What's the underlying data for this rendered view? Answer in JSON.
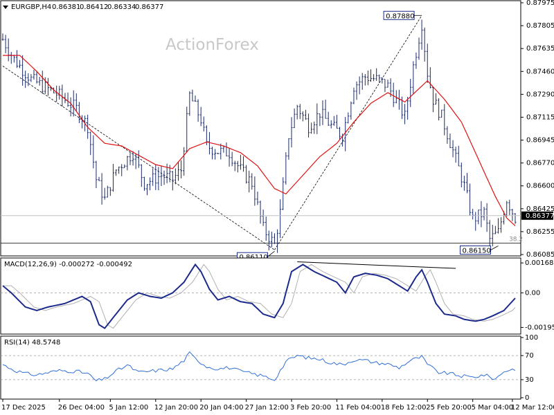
{
  "header": {
    "symbol": "EURGBP,H4",
    "open": "0.86381",
    "high": "0.86412",
    "low": "0.86334",
    "close": "0.86377"
  },
  "watermark": "ActionForex",
  "colors": {
    "price_bars": "#1b2a66",
    "moving_average": "#e01010",
    "macd_line": "#1b2a8a",
    "macd_signal": "#b0b0b0",
    "rsi_line": "#2f6fd6",
    "trendline": "#000000",
    "frame": "#000000"
  },
  "chart_data": [
    {
      "name": "price",
      "type": "ohlc",
      "ylim": [
        0.86085,
        0.87975
      ],
      "y_ticks": [
        "0.87975",
        "0.87805",
        "0.87635",
        "0.87460",
        "0.87290",
        "0.87115",
        "0.86945",
        "0.86770",
        "0.86600",
        "0.86425",
        "0.86255",
        "0.86085"
      ],
      "current_price_label": "0.86377",
      "fib_label": "38.2",
      "fib_level": 0.8617,
      "annotations": [
        {
          "label": "0.87880",
          "value": 0.8788,
          "index": 148
        },
        {
          "label": "0.86110",
          "value": 0.8611,
          "index": 96
        },
        {
          "label": "0.86150",
          "value": 0.8615,
          "index": 175
        }
      ],
      "anchor_points": [
        [
          0,
          0.877
        ],
        [
          4,
          0.8755
        ],
        [
          10,
          0.874
        ],
        [
          20,
          0.8728
        ],
        [
          26,
          0.8718
        ],
        [
          30,
          0.8705
        ],
        [
          33,
          0.8665
        ],
        [
          36,
          0.865
        ],
        [
          40,
          0.8672
        ],
        [
          46,
          0.8685
        ],
        [
          50,
          0.8662
        ],
        [
          56,
          0.8668
        ],
        [
          60,
          0.8665
        ],
        [
          63,
          0.8672
        ],
        [
          66,
          0.8728
        ],
        [
          70,
          0.871
        ],
        [
          72,
          0.869
        ],
        [
          76,
          0.8686
        ],
        [
          80,
          0.8685
        ],
        [
          84,
          0.8672
        ],
        [
          88,
          0.8662
        ],
        [
          92,
          0.8628
        ],
        [
          96,
          0.8616
        ],
        [
          98,
          0.864
        ],
        [
          101,
          0.8698
        ],
        [
          104,
          0.872
        ],
        [
          108,
          0.8705
        ],
        [
          112,
          0.8715
        ],
        [
          116,
          0.8705
        ],
        [
          120,
          0.8698
        ],
        [
          124,
          0.8735
        ],
        [
          128,
          0.8742
        ],
        [
          132,
          0.874
        ],
        [
          136,
          0.8735
        ],
        [
          140,
          0.872
        ],
        [
          142,
          0.8712
        ],
        [
          145,
          0.875
        ],
        [
          148,
          0.8782
        ],
        [
          150,
          0.8745
        ],
        [
          152,
          0.8725
        ],
        [
          155,
          0.8712
        ],
        [
          160,
          0.868
        ],
        [
          163,
          0.866
        ],
        [
          166,
          0.8635
        ],
        [
          170,
          0.864
        ],
        [
          172,
          0.862
        ],
        [
          175,
          0.8625
        ],
        [
          178,
          0.865
        ],
        [
          181,
          0.8636
        ]
      ],
      "ma_points": [
        [
          0,
          0.8758
        ],
        [
          6,
          0.8758
        ],
        [
          12,
          0.8746
        ],
        [
          18,
          0.8732
        ],
        [
          24,
          0.8722
        ],
        [
          30,
          0.8704
        ],
        [
          36,
          0.8692
        ],
        [
          42,
          0.869
        ],
        [
          48,
          0.8683
        ],
        [
          54,
          0.8676
        ],
        [
          60,
          0.8673
        ],
        [
          66,
          0.8688
        ],
        [
          72,
          0.8693
        ],
        [
          78,
          0.869
        ],
        [
          84,
          0.8685
        ],
        [
          90,
          0.8675
        ],
        [
          96,
          0.8658
        ],
        [
          100,
          0.8654
        ],
        [
          106,
          0.8668
        ],
        [
          112,
          0.8682
        ],
        [
          118,
          0.8692
        ],
        [
          124,
          0.8708
        ],
        [
          130,
          0.8722
        ],
        [
          136,
          0.873
        ],
        [
          142,
          0.8723
        ],
        [
          148,
          0.8735
        ],
        [
          150,
          0.8739
        ],
        [
          156,
          0.8725
        ],
        [
          162,
          0.8708
        ],
        [
          168,
          0.868
        ],
        [
          174,
          0.8652
        ],
        [
          178,
          0.8636
        ],
        [
          181,
          0.863
        ]
      ],
      "trendlines": [
        {
          "from": [
            0,
            0.875
          ],
          "to": [
            96,
            0.8612
          ]
        },
        {
          "from": [
            96,
            0.8612
          ],
          "to": [
            148,
            0.8788
          ]
        }
      ]
    },
    {
      "name": "macd",
      "type": "line",
      "label": "MACD(12,26,9) -0.000272 -0.000492",
      "ylim": [
        -0.00225,
        0.00185
      ],
      "y_ticks": [
        "0.001688",
        "0.00",
        "-0.001953"
      ],
      "y_tick_values": [
        0.001688,
        0.0,
        -0.001953
      ],
      "macd_points": [
        [
          0,
          0.0004
        ],
        [
          3,
          0.0
        ],
        [
          8,
          -0.0008
        ],
        [
          12,
          -0.001
        ],
        [
          16,
          -0.0008
        ],
        [
          22,
          -0.0006
        ],
        [
          28,
          -0.0002
        ],
        [
          31,
          -0.0005
        ],
        [
          34,
          -0.0018
        ],
        [
          36,
          -0.002
        ],
        [
          40,
          -0.0012
        ],
        [
          44,
          -0.0004
        ],
        [
          48,
          0.0
        ],
        [
          52,
          -0.0002
        ],
        [
          56,
          -0.0003
        ],
        [
          60,
          0.0
        ],
        [
          64,
          0.0006
        ],
        [
          68,
          0.0016
        ],
        [
          70,
          0.0012
        ],
        [
          73,
          0.0002
        ],
        [
          76,
          -0.0004
        ],
        [
          80,
          -0.0002
        ],
        [
          84,
          -0.0005
        ],
        [
          88,
          -0.0006
        ],
        [
          92,
          -0.0012
        ],
        [
          96,
          -0.0014
        ],
        [
          99,
          -0.0006
        ],
        [
          102,
          0.0012
        ],
        [
          106,
          0.0016
        ],
        [
          110,
          0.0012
        ],
        [
          114,
          0.0009
        ],
        [
          118,
          0.0006
        ],
        [
          121,
          0.0
        ],
        [
          124,
          0.0009
        ],
        [
          128,
          0.0011
        ],
        [
          132,
          0.001
        ],
        [
          136,
          0.0008
        ],
        [
          140,
          0.0004
        ],
        [
          143,
          0.0001
        ],
        [
          146,
          0.0009
        ],
        [
          148,
          0.0013
        ],
        [
          150,
          0.0006
        ],
        [
          153,
          -0.0006
        ],
        [
          156,
          -0.0012
        ],
        [
          160,
          -0.0013
        ],
        [
          163,
          -0.0015
        ],
        [
          167,
          -0.0016
        ],
        [
          170,
          -0.0015
        ],
        [
          173,
          -0.0013
        ],
        [
          177,
          -0.001
        ],
        [
          181,
          -0.0003
        ]
      ],
      "signal_lag": 3,
      "divergence_line": {
        "from": [
          104,
          0.00175
        ],
        "to": [
          160,
          0.00138
        ]
      }
    },
    {
      "name": "rsi",
      "type": "line",
      "label": "RSI(14) 48.5748",
      "ylim": [
        0,
        100
      ],
      "y_ticks": [
        "100",
        "70",
        "30",
        "0"
      ],
      "y_tick_values": [
        100,
        70,
        30,
        0
      ],
      "levels": [
        70,
        30
      ],
      "rsi_points": [
        [
          0,
          55
        ],
        [
          4,
          46
        ],
        [
          8,
          40
        ],
        [
          12,
          38
        ],
        [
          16,
          42
        ],
        [
          20,
          45
        ],
        [
          26,
          44
        ],
        [
          30,
          40
        ],
        [
          33,
          28
        ],
        [
          36,
          31
        ],
        [
          40,
          44
        ],
        [
          44,
          54
        ],
        [
          48,
          42
        ],
        [
          52,
          44
        ],
        [
          56,
          46
        ],
        [
          60,
          48
        ],
        [
          64,
          62
        ],
        [
          66,
          74
        ],
        [
          68,
          65
        ],
        [
          72,
          52
        ],
        [
          76,
          48
        ],
        [
          80,
          50
        ],
        [
          84,
          44
        ],
        [
          88,
          40
        ],
        [
          92,
          36
        ],
        [
          96,
          30
        ],
        [
          100,
          60
        ],
        [
          104,
          70
        ],
        [
          108,
          66
        ],
        [
          112,
          64
        ],
        [
          116,
          58
        ],
        [
          120,
          55
        ],
        [
          124,
          63
        ],
        [
          128,
          62
        ],
        [
          132,
          58
        ],
        [
          136,
          56
        ],
        [
          140,
          50
        ],
        [
          144,
          62
        ],
        [
          148,
          68
        ],
        [
          150,
          55
        ],
        [
          154,
          42
        ],
        [
          158,
          40
        ],
        [
          162,
          36
        ],
        [
          166,
          34
        ],
        [
          170,
          38
        ],
        [
          174,
          31
        ],
        [
          177,
          44
        ],
        [
          181,
          48
        ]
      ]
    }
  ],
  "x_axis": {
    "labels": [
      {
        "text": "17 Dec 2025",
        "index": 0
      },
      {
        "text": "26 Dec 04:00",
        "index": 20
      },
      {
        "text": "5 Jan 12:00",
        "index": 38
      },
      {
        "text": "12 Jan 20:00",
        "index": 54
      },
      {
        "text": "20 Jan 04:00",
        "index": 70
      },
      {
        "text": "27 Jan 12:00",
        "index": 86
      },
      {
        "text": "3 Feb 20:00",
        "index": 102
      },
      {
        "text": "11 Feb 04:00",
        "index": 118
      },
      {
        "text": "18 Feb 12:00",
        "index": 134
      },
      {
        "text": "25 Feb 20:00",
        "index": 150
      },
      {
        "text": "5 Mar 04:00",
        "index": 166
      },
      {
        "text": "12 Mar 12:00",
        "index": 180
      }
    ]
  }
}
